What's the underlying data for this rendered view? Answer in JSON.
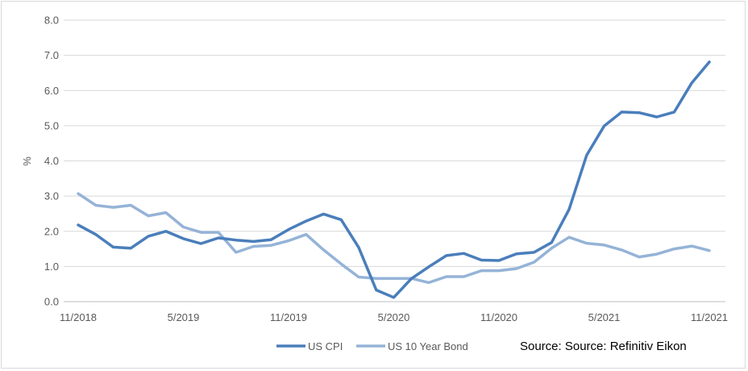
{
  "chart_data": {
    "type": "line",
    "title": "",
    "xlabel": "",
    "ylabel": "%",
    "ylim": [
      0,
      8
    ],
    "yticks": [
      "0.0",
      "1.0",
      "2.0",
      "3.0",
      "4.0",
      "5.0",
      "6.0",
      "7.0",
      "8.0"
    ],
    "x": [
      "11/2018",
      "12/2018",
      "1/2019",
      "2/2019",
      "3/2019",
      "4/2019",
      "5/2019",
      "6/2019",
      "7/2019",
      "8/2019",
      "9/2019",
      "10/2019",
      "11/2019",
      "12/2019",
      "1/2020",
      "2/2020",
      "3/2020",
      "4/2020",
      "5/2020",
      "6/2020",
      "7/2020",
      "8/2020",
      "9/2020",
      "10/2020",
      "11/2020",
      "12/2020",
      "1/2021",
      "2/2021",
      "3/2021",
      "4/2021",
      "5/2021",
      "6/2021",
      "7/2021",
      "8/2021",
      "9/2021",
      "10/2021",
      "11/2021"
    ],
    "xticks": [
      "11/2018",
      "5/2019",
      "11/2019",
      "5/2020",
      "11/2020",
      "5/2021",
      "11/2021"
    ],
    "grid": true,
    "legend_position": "bottom",
    "series": [
      {
        "name": "US CPI",
        "color": "#4a7ebb",
        "values": [
          2.18,
          1.91,
          1.55,
          1.52,
          1.86,
          2.0,
          1.79,
          1.65,
          1.81,
          1.75,
          1.71,
          1.76,
          2.05,
          2.29,
          2.49,
          2.33,
          1.54,
          0.33,
          0.12,
          0.65,
          0.99,
          1.31,
          1.37,
          1.18,
          1.17,
          1.36,
          1.4,
          1.68,
          2.62,
          4.16,
          4.99,
          5.39,
          5.37,
          5.25,
          5.39,
          6.22,
          6.81
        ]
      },
      {
        "name": "US 10 Year Bond",
        "color": "#95b3d7",
        "values": [
          3.07,
          2.74,
          2.68,
          2.74,
          2.44,
          2.53,
          2.12,
          1.97,
          1.97,
          1.4,
          1.57,
          1.6,
          1.73,
          1.91,
          1.47,
          1.07,
          0.7,
          0.66,
          0.66,
          0.66,
          0.54,
          0.71,
          0.71,
          0.88,
          0.88,
          0.94,
          1.12,
          1.52,
          1.83,
          1.66,
          1.61,
          1.47,
          1.27,
          1.35,
          1.5,
          1.58,
          1.45
        ]
      }
    ],
    "annotation": "Source: Source: Refinitiv Eikon"
  }
}
